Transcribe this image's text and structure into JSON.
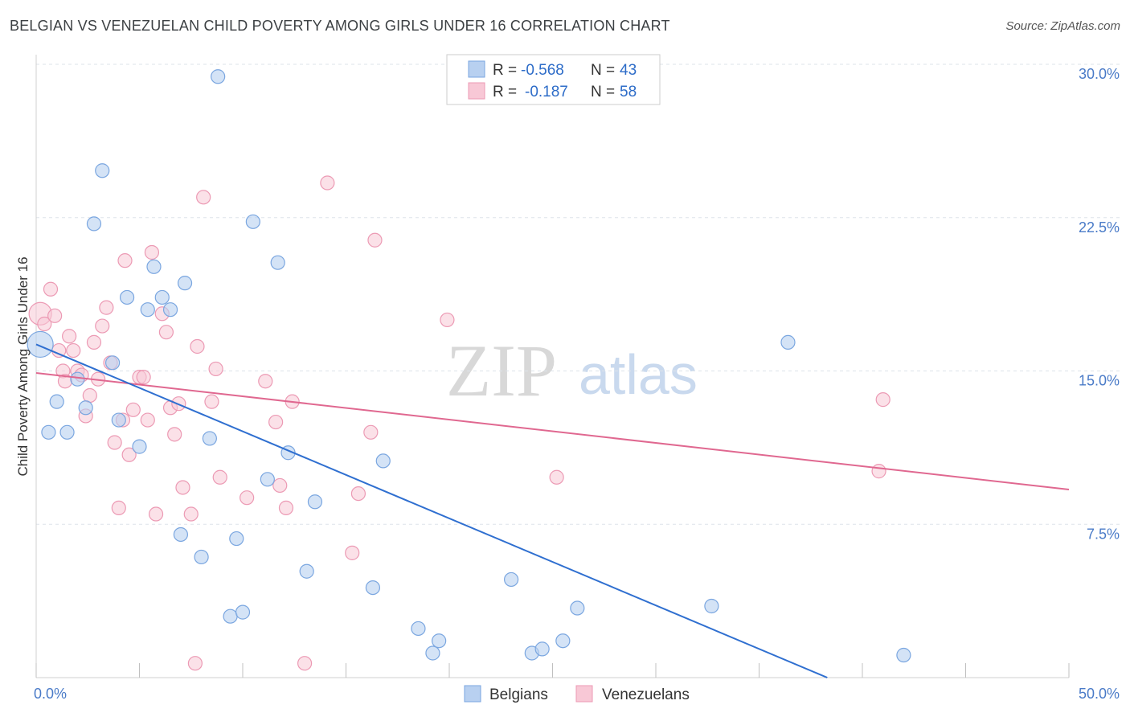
{
  "title": "BELGIAN VS VENEZUELAN CHILD POVERTY AMONG GIRLS UNDER 16 CORRELATION CHART",
  "source": "Source: ZipAtlas.com",
  "watermark": {
    "zip": "ZIP",
    "atlas": "atlas"
  },
  "legend_top": [
    {
      "r_label": "R =",
      "r_value": "-0.568",
      "n_label": "N =",
      "n_value": "43"
    },
    {
      "r_label": "R =",
      "r_value": "-0.187",
      "n_label": "N =",
      "n_value": "58"
    }
  ],
  "colors": {
    "belgians_fill": "#b8d0f0",
    "belgians_stroke": "#7aa6e0",
    "belgians_line": "#2f6fd0",
    "venezuelans_fill": "#f8c8d6",
    "venezuelans_stroke": "#ec9ab4",
    "venezuelans_line": "#e06890",
    "grid": "#dde3ea",
    "tick_text": "#4a7bc8"
  },
  "chart_data": {
    "type": "scatter",
    "title": "BELGIAN VS VENEZUELAN CHILD POVERTY AMONG GIRLS UNDER 16 CORRELATION CHART",
    "xlabel": "",
    "ylabel": "Child Poverty Among Girls Under 16",
    "xlim": [
      0,
      50
    ],
    "ylim": [
      0,
      30
    ],
    "x_tick_labels": [
      "0.0%",
      "50.0%"
    ],
    "y_ticks": [
      7.5,
      15.0,
      22.5,
      30.0
    ],
    "y_tick_labels": [
      "7.5%",
      "15.0%",
      "22.5%",
      "30.0%"
    ],
    "grid": true,
    "legend_position": "bottom",
    "series": [
      {
        "name": "Belgians",
        "color": "#b8d0f0",
        "points": [
          [
            0.2,
            16.3
          ],
          [
            0.6,
            12.0
          ],
          [
            1.0,
            13.5
          ],
          [
            1.5,
            12.0
          ],
          [
            2.0,
            14.6
          ],
          [
            2.4,
            13.2
          ],
          [
            3.2,
            24.8
          ],
          [
            2.8,
            22.2
          ],
          [
            3.7,
            15.4
          ],
          [
            4.0,
            12.6
          ],
          [
            4.4,
            18.6
          ],
          [
            5.0,
            11.3
          ],
          [
            5.4,
            18.0
          ],
          [
            5.7,
            20.1
          ],
          [
            6.1,
            18.6
          ],
          [
            6.5,
            18.0
          ],
          [
            7.2,
            19.3
          ],
          [
            7.0,
            7.0
          ],
          [
            8.0,
            5.9
          ],
          [
            8.4,
            11.7
          ],
          [
            8.8,
            29.4
          ],
          [
            9.4,
            3.0
          ],
          [
            9.7,
            6.8
          ],
          [
            10.0,
            3.2
          ],
          [
            10.5,
            22.3
          ],
          [
            11.2,
            9.7
          ],
          [
            11.7,
            20.3
          ],
          [
            12.2,
            11.0
          ],
          [
            13.1,
            5.2
          ],
          [
            13.5,
            8.6
          ],
          [
            16.3,
            4.4
          ],
          [
            16.8,
            10.6
          ],
          [
            18.5,
            2.4
          ],
          [
            19.2,
            1.2
          ],
          [
            19.5,
            1.8
          ],
          [
            23.0,
            4.8
          ],
          [
            24.0,
            1.2
          ],
          [
            24.5,
            1.4
          ],
          [
            25.5,
            1.8
          ],
          [
            26.2,
            3.4
          ],
          [
            32.7,
            3.5
          ],
          [
            36.4,
            16.4
          ],
          [
            42.0,
            1.1
          ]
        ]
      },
      {
        "name": "Venezuelans",
        "color": "#f8c8d6",
        "points": [
          [
            0.2,
            17.8
          ],
          [
            0.4,
            17.3
          ],
          [
            0.7,
            19.0
          ],
          [
            0.9,
            17.7
          ],
          [
            1.1,
            16.0
          ],
          [
            1.3,
            15.0
          ],
          [
            1.4,
            14.5
          ],
          [
            1.6,
            16.7
          ],
          [
            1.8,
            16.0
          ],
          [
            2.0,
            15.0
          ],
          [
            2.2,
            14.8
          ],
          [
            2.4,
            12.8
          ],
          [
            2.6,
            13.8
          ],
          [
            2.8,
            16.4
          ],
          [
            3.0,
            14.6
          ],
          [
            3.2,
            17.2
          ],
          [
            3.4,
            18.1
          ],
          [
            3.6,
            15.4
          ],
          [
            3.8,
            11.5
          ],
          [
            4.0,
            8.3
          ],
          [
            4.2,
            12.6
          ],
          [
            4.3,
            20.4
          ],
          [
            4.5,
            10.9
          ],
          [
            4.7,
            13.1
          ],
          [
            5.0,
            14.7
          ],
          [
            5.2,
            14.7
          ],
          [
            5.4,
            12.6
          ],
          [
            5.6,
            20.8
          ],
          [
            5.8,
            8.0
          ],
          [
            6.1,
            17.8
          ],
          [
            6.3,
            16.9
          ],
          [
            6.5,
            13.2
          ],
          [
            6.7,
            11.9
          ],
          [
            6.9,
            13.4
          ],
          [
            7.1,
            9.3
          ],
          [
            7.5,
            8.0
          ],
          [
            7.8,
            16.2
          ],
          [
            7.7,
            0.7
          ],
          [
            8.1,
            23.5
          ],
          [
            8.5,
            13.5
          ],
          [
            8.7,
            15.1
          ],
          [
            8.9,
            9.8
          ],
          [
            10.2,
            8.8
          ],
          [
            11.1,
            14.5
          ],
          [
            11.6,
            12.5
          ],
          [
            11.8,
            9.4
          ],
          [
            12.1,
            8.3
          ],
          [
            12.4,
            13.5
          ],
          [
            13.0,
            0.7
          ],
          [
            14.1,
            24.2
          ],
          [
            15.3,
            6.1
          ],
          [
            15.6,
            9.0
          ],
          [
            16.2,
            12.0
          ],
          [
            16.4,
            21.4
          ],
          [
            19.9,
            17.5
          ],
          [
            25.2,
            9.8
          ],
          [
            40.8,
            10.1
          ],
          [
            41.0,
            13.6
          ]
        ]
      }
    ],
    "trend_lines": [
      {
        "name": "Belgians",
        "x": [
          0,
          38.3
        ],
        "y": [
          16.3,
          0
        ]
      },
      {
        "name": "Venezuelans",
        "x": [
          0,
          50
        ],
        "y": [
          14.9,
          9.2
        ]
      }
    ]
  },
  "bottom_legend": {
    "belgians": "Belgians",
    "venezuelans": "Venezuelans"
  }
}
